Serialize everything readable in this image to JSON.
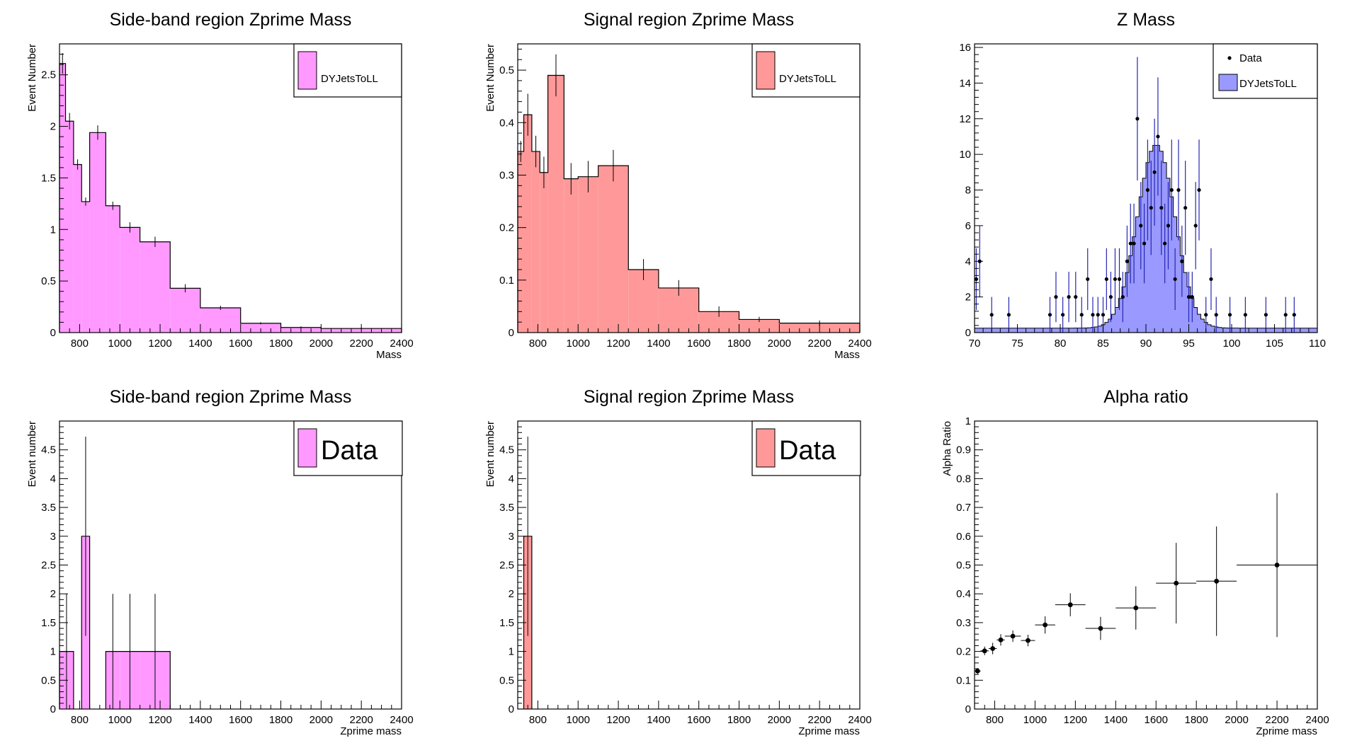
{
  "chart_data": [
    {
      "type": "bar",
      "title": "Side-band region Zprime Mass",
      "xlabel": "Mass",
      "ylabel": "Event Number",
      "xlim": [
        700,
        2400
      ],
      "ylim": [
        0,
        2.8
      ],
      "xticks": [
        800,
        1000,
        1200,
        1400,
        1600,
        1800,
        2000,
        2200,
        2400
      ],
      "yticks": [
        0,
        0.5,
        1,
        1.5,
        2,
        2.5
      ],
      "fill_color": "#ff99ff",
      "legend": {
        "entries": [
          "DYJetsToLL"
        ],
        "style": "box",
        "large": false
      },
      "bins": [
        {
          "lo": 700,
          "hi": 730,
          "y": 2.61,
          "err": 0.1
        },
        {
          "lo": 730,
          "hi": 770,
          "y": 2.05,
          "err": 0.08
        },
        {
          "lo": 770,
          "hi": 810,
          "y": 1.63,
          "err": 0.05
        },
        {
          "lo": 810,
          "hi": 850,
          "y": 1.27,
          "err": 0.04
        },
        {
          "lo": 850,
          "hi": 930,
          "y": 1.94,
          "err": 0.07
        },
        {
          "lo": 930,
          "hi": 1000,
          "y": 1.23,
          "err": 0.04
        },
        {
          "lo": 1000,
          "hi": 1100,
          "y": 1.02,
          "err": 0.05
        },
        {
          "lo": 1100,
          "hi": 1250,
          "y": 0.88,
          "err": 0.05
        },
        {
          "lo": 1250,
          "hi": 1400,
          "y": 0.43,
          "err": 0.04
        },
        {
          "lo": 1400,
          "hi": 1600,
          "y": 0.24,
          "err": 0.02
        },
        {
          "lo": 1600,
          "hi": 1800,
          "y": 0.09,
          "err": 0.01
        },
        {
          "lo": 1800,
          "hi": 2000,
          "y": 0.05,
          "err": 0.01
        },
        {
          "lo": 2000,
          "hi": 2400,
          "y": 0.04,
          "err": 0.01
        }
      ]
    },
    {
      "type": "bar",
      "title": "Signal region Zprime Mass",
      "xlabel": "Mass",
      "ylabel": "Event Number",
      "xlim": [
        700,
        2400
      ],
      "ylim": [
        0,
        0.55
      ],
      "xticks": [
        800,
        1000,
        1200,
        1400,
        1600,
        1800,
        2000,
        2200,
        2400
      ],
      "yticks": [
        0,
        0.1,
        0.2,
        0.3,
        0.4,
        0.5
      ],
      "fill_color": "#ff9999",
      "legend": {
        "entries": [
          "DYJetsToLL"
        ],
        "style": "box",
        "large": false
      },
      "bins": [
        {
          "lo": 700,
          "hi": 730,
          "y": 0.345,
          "err": 0.02
        },
        {
          "lo": 730,
          "hi": 770,
          "y": 0.415,
          "err": 0.04
        },
        {
          "lo": 770,
          "hi": 810,
          "y": 0.345,
          "err": 0.03
        },
        {
          "lo": 810,
          "hi": 850,
          "y": 0.305,
          "err": 0.03
        },
        {
          "lo": 850,
          "hi": 930,
          "y": 0.49,
          "err": 0.04
        },
        {
          "lo": 930,
          "hi": 1000,
          "y": 0.293,
          "err": 0.03
        },
        {
          "lo": 1000,
          "hi": 1100,
          "y": 0.297,
          "err": 0.03
        },
        {
          "lo": 1100,
          "hi": 1250,
          "y": 0.318,
          "err": 0.03
        },
        {
          "lo": 1250,
          "hi": 1400,
          "y": 0.12,
          "err": 0.02
        },
        {
          "lo": 1400,
          "hi": 1600,
          "y": 0.085,
          "err": 0.015
        },
        {
          "lo": 1600,
          "hi": 1800,
          "y": 0.04,
          "err": 0.01
        },
        {
          "lo": 1800,
          "hi": 2000,
          "y": 0.025,
          "err": 0.005
        },
        {
          "lo": 2000,
          "hi": 2400,
          "y": 0.018,
          "err": 0.005
        }
      ]
    },
    {
      "type": "bar",
      "title": "Z Mass",
      "xlabel": "",
      "ylabel": "",
      "xlim": [
        70,
        110
      ],
      "ylim": [
        0,
        16.2
      ],
      "xticks": [
        70,
        75,
        80,
        85,
        90,
        95,
        100,
        105,
        110
      ],
      "yticks": [
        0,
        2,
        4,
        6,
        8,
        10,
        12,
        14,
        16
      ],
      "fill_color": "#9999ff",
      "data_color": "#2626b3",
      "mc_peak": {
        "mean": 91.2,
        "sigma": 2.2,
        "peak": 10.3,
        "baseline": 0.25
      },
      "mc_bin_width": 0.4,
      "legend": {
        "entries": [
          "Data",
          "DYJetsToLL"
        ],
        "style": "data-mc",
        "large": false
      },
      "points": [
        {
          "x": 70.2,
          "y": 3
        },
        {
          "x": 70.6,
          "y": 4
        },
        {
          "x": 72,
          "y": 1
        },
        {
          "x": 74,
          "y": 1
        },
        {
          "x": 78.8,
          "y": 1
        },
        {
          "x": 79.5,
          "y": 2
        },
        {
          "x": 80.3,
          "y": 1
        },
        {
          "x": 81,
          "y": 2
        },
        {
          "x": 81.8,
          "y": 2
        },
        {
          "x": 82.5,
          "y": 1
        },
        {
          "x": 83.2,
          "y": 3
        },
        {
          "x": 83.8,
          "y": 1
        },
        {
          "x": 84.4,
          "y": 1
        },
        {
          "x": 85,
          "y": 1
        },
        {
          "x": 85.4,
          "y": 3
        },
        {
          "x": 85.9,
          "y": 2
        },
        {
          "x": 86.4,
          "y": 3
        },
        {
          "x": 86.9,
          "y": 3
        },
        {
          "x": 87.3,
          "y": 2
        },
        {
          "x": 87.8,
          "y": 4
        },
        {
          "x": 88.2,
          "y": 5
        },
        {
          "x": 88.6,
          "y": 5
        },
        {
          "x": 89,
          "y": 12
        },
        {
          "x": 89.4,
          "y": 6
        },
        {
          "x": 89.8,
          "y": 5
        },
        {
          "x": 90.2,
          "y": 8
        },
        {
          "x": 90.6,
          "y": 7
        },
        {
          "x": 91,
          "y": 9
        },
        {
          "x": 91.4,
          "y": 11
        },
        {
          "x": 91.8,
          "y": 7
        },
        {
          "x": 92.2,
          "y": 5
        },
        {
          "x": 92.6,
          "y": 6
        },
        {
          "x": 93,
          "y": 8
        },
        {
          "x": 93.4,
          "y": 3
        },
        {
          "x": 93.8,
          "y": 8
        },
        {
          "x": 94.2,
          "y": 4
        },
        {
          "x": 94.6,
          "y": 7
        },
        {
          "x": 95,
          "y": 2
        },
        {
          "x": 95.4,
          "y": 2
        },
        {
          "x": 95.8,
          "y": 6
        },
        {
          "x": 96.2,
          "y": 8
        },
        {
          "x": 97,
          "y": 1
        },
        {
          "x": 97.6,
          "y": 3
        },
        {
          "x": 98.2,
          "y": 1
        },
        {
          "x": 99.8,
          "y": 1
        },
        {
          "x": 101.6,
          "y": 1
        },
        {
          "x": 104,
          "y": 1
        },
        {
          "x": 106.3,
          "y": 1
        },
        {
          "x": 107.3,
          "y": 1
        }
      ]
    },
    {
      "type": "bar",
      "title": "Side-band region Zprime Mass",
      "xlabel": "Zprime mass",
      "ylabel": "Event number",
      "xlim": [
        700,
        2400
      ],
      "ylim": [
        0,
        5.0
      ],
      "xticks": [
        800,
        1000,
        1200,
        1400,
        1600,
        1800,
        2000,
        2200,
        2400
      ],
      "yticks": [
        0,
        0.5,
        1,
        1.5,
        2,
        2.5,
        3,
        3.5,
        4,
        4.5
      ],
      "fill_color": "#ff99ff",
      "legend": {
        "entries": [
          "Data"
        ],
        "style": "box",
        "large": true
      },
      "bins": [
        {
          "lo": 700,
          "hi": 770,
          "y": 1,
          "err_up": 1,
          "err_lo": 1
        },
        {
          "lo": 810,
          "hi": 850,
          "y": 3,
          "err_up": 1.73,
          "err_lo": 1.73
        },
        {
          "lo": 930,
          "hi": 1000,
          "y": 1,
          "err_up": 1,
          "err_lo": 1
        },
        {
          "lo": 1000,
          "hi": 1100,
          "y": 1,
          "err_up": 1,
          "err_lo": 1
        },
        {
          "lo": 1100,
          "hi": 1250,
          "y": 1,
          "err_up": 1,
          "err_lo": 1
        }
      ]
    },
    {
      "type": "bar",
      "title": "Signal region Zprime Mass",
      "xlabel": "Zprime mass",
      "ylabel": "Event number",
      "xlim": [
        700,
        2400
      ],
      "ylim": [
        0,
        5.0
      ],
      "xticks": [
        800,
        1000,
        1200,
        1400,
        1600,
        1800,
        2000,
        2200,
        2400
      ],
      "yticks": [
        0,
        0.5,
        1,
        1.5,
        2,
        2.5,
        3,
        3.5,
        4,
        4.5
      ],
      "fill_color": "#ff9999",
      "legend": {
        "entries": [
          "Data"
        ],
        "style": "box",
        "large": true
      },
      "bins": [
        {
          "lo": 730,
          "hi": 770,
          "y": 3,
          "err_up": 1.73,
          "err_lo": 1.73
        }
      ]
    },
    {
      "type": "scatter",
      "title": "Alpha ratio",
      "xlabel": "Zprime mass",
      "ylabel": "Alpha Ratio",
      "xlim": [
        700,
        2400
      ],
      "ylim": [
        0,
        1
      ],
      "xticks": [
        800,
        1000,
        1200,
        1400,
        1600,
        1800,
        2000,
        2200,
        2400
      ],
      "yticks": [
        0,
        0.1,
        0.2,
        0.3,
        0.4,
        0.5,
        0.6,
        0.7,
        0.8,
        0.9,
        1
      ],
      "points": [
        {
          "lo": 700,
          "hi": 730,
          "y": 0.132,
          "err": 0.01
        },
        {
          "lo": 730,
          "hi": 770,
          "y": 0.202,
          "err": 0.015
        },
        {
          "lo": 770,
          "hi": 810,
          "y": 0.21,
          "err": 0.02
        },
        {
          "lo": 810,
          "hi": 850,
          "y": 0.24,
          "err": 0.02
        },
        {
          "lo": 850,
          "hi": 930,
          "y": 0.253,
          "err": 0.02
        },
        {
          "lo": 930,
          "hi": 1000,
          "y": 0.238,
          "err": 0.02
        },
        {
          "lo": 1000,
          "hi": 1100,
          "y": 0.292,
          "err": 0.03
        },
        {
          "lo": 1100,
          "hi": 1250,
          "y": 0.362,
          "err": 0.04
        },
        {
          "lo": 1250,
          "hi": 1400,
          "y": 0.28,
          "err": 0.04
        },
        {
          "lo": 1400,
          "hi": 1600,
          "y": 0.351,
          "err": 0.075
        },
        {
          "lo": 1600,
          "hi": 1800,
          "y": 0.437,
          "err": 0.14
        },
        {
          "lo": 1800,
          "hi": 2000,
          "y": 0.444,
          "err": 0.19
        },
        {
          "lo": 2000,
          "hi": 2400,
          "y": 0.5,
          "err": 0.25
        }
      ]
    }
  ]
}
